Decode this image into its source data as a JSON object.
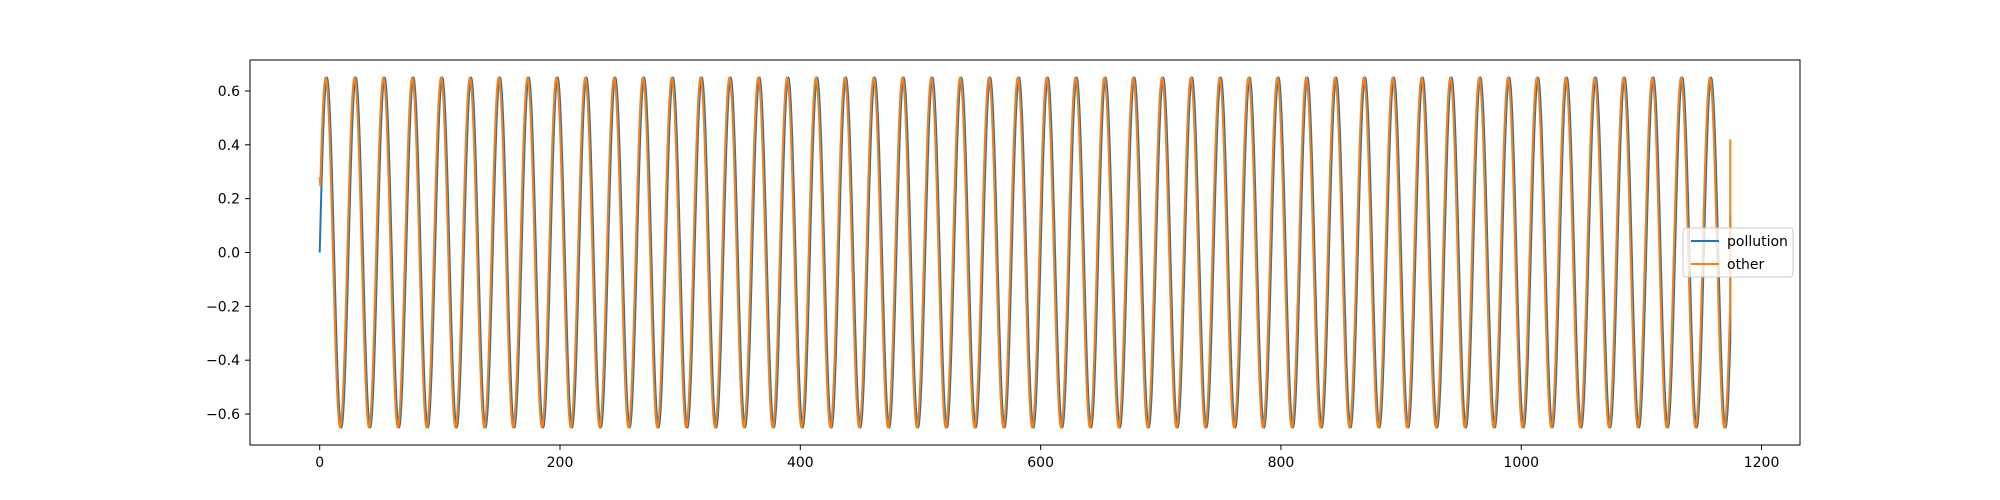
{
  "chart_data": {
    "type": "line",
    "title": "",
    "xlabel": "",
    "ylabel": "",
    "xlim": [
      -58,
      1232
    ],
    "ylim": [
      -0.715,
      0.715
    ],
    "x_ticks": [
      0,
      200,
      400,
      600,
      800,
      1000,
      1200
    ],
    "y_ticks": [
      -0.6,
      -0.4,
      -0.2,
      0.0,
      0.2,
      0.4,
      0.6
    ],
    "x_tick_labels": [
      "0",
      "200",
      "400",
      "600",
      "800",
      "1000",
      "1200"
    ],
    "y_tick_labels": [
      "−0.6",
      "−0.4",
      "−0.2",
      "0.0",
      "0.2",
      "0.4",
      "0.6"
    ],
    "grid": false,
    "legend_position": "center-right",
    "x_range": [
      0,
      1174
    ],
    "series": [
      {
        "name": "pollution",
        "color": "#1f77b4",
        "pattern": "sine",
        "amplitude": 0.65,
        "period": 24,
        "phase_shift": 0,
        "start_value": 0.0,
        "end_value": 0.14
      },
      {
        "name": "other",
        "color": "#ff7f0e",
        "pattern": "sine",
        "amplitude": 0.65,
        "period": 24,
        "phase_shift": 1,
        "start_value": 0.28,
        "end_value": 0.42
      }
    ]
  }
}
